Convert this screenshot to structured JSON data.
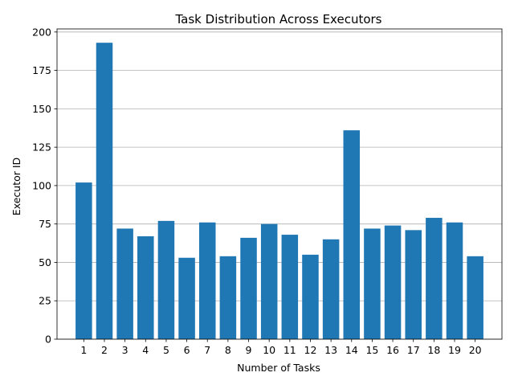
{
  "chart_data": {
    "type": "bar",
    "title": "Task Distribution Across Executors",
    "xlabel": "Number of Tasks",
    "ylabel": "Executor ID",
    "categories": [
      "1",
      "2",
      "3",
      "4",
      "5",
      "6",
      "7",
      "8",
      "9",
      "10",
      "11",
      "12",
      "13",
      "14",
      "15",
      "16",
      "17",
      "18",
      "19",
      "20"
    ],
    "values": [
      102,
      193,
      72,
      67,
      77,
      53,
      76,
      54,
      66,
      75,
      68,
      55,
      65,
      136,
      72,
      74,
      71,
      79,
      76,
      54
    ],
    "ylim": [
      0,
      202
    ],
    "yticks": [
      0,
      25,
      50,
      75,
      100,
      125,
      150,
      175,
      200
    ],
    "grid": "y",
    "bar_color": "#1f77b4",
    "grid_color": "#b0b0b0"
  }
}
